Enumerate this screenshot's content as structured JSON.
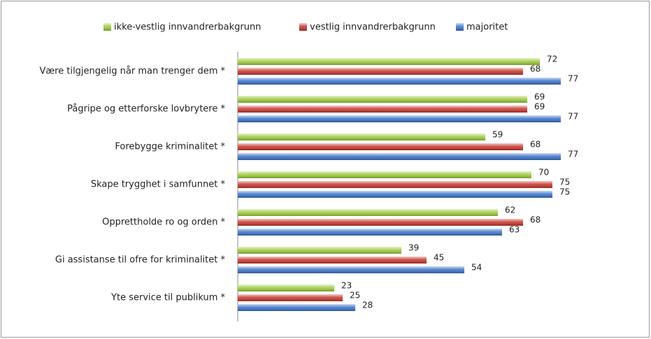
{
  "chart_data": {
    "type": "bar",
    "orientation": "horizontal",
    "categories": [
      "Være tilgjengelig når man trenger dem *",
      "Pågripe og etterforske lovbrytere *",
      "Forebygge kriminalitet *",
      "Skape trygghet i samfunnet *",
      "Opprettholde ro og orden *",
      "Gi assistanse til ofre for kriminalitet *",
      "Yte service til publikum *"
    ],
    "series": [
      {
        "name": "ikke-vestlig innvandrerbakgrunn",
        "color": "#9ccc3c",
        "values": [
          72,
          69,
          59,
          70,
          62,
          39,
          23
        ]
      },
      {
        "name": "vestlig innvandrerbakgrunn",
        "color": "#c8342c",
        "values": [
          68,
          69,
          68,
          75,
          68,
          45,
          25
        ]
      },
      {
        "name": "majoritet",
        "color": "#3a72c8",
        "values": [
          77,
          77,
          77,
          75,
          63,
          54,
          28
        ]
      }
    ],
    "xlim": [
      0,
      95
    ],
    "legend": "top"
  }
}
